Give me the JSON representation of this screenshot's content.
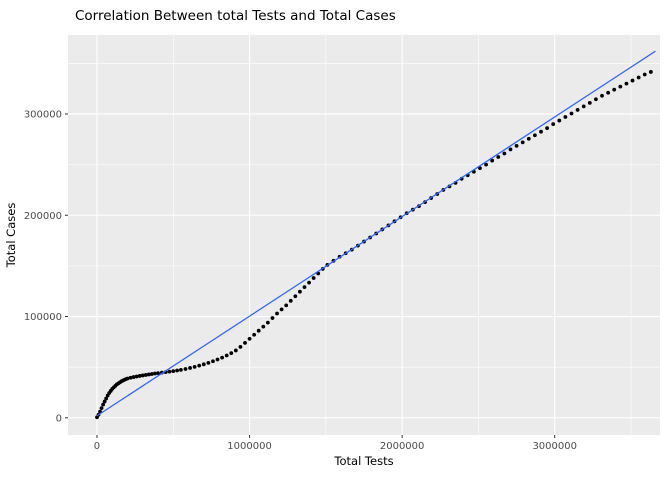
{
  "chart_data": {
    "type": "scatter",
    "title": "Correlation Between total Tests and Total Cases",
    "xlabel": "Total Tests",
    "ylabel": "Total Cases",
    "x_ticks": [
      0,
      1000000,
      2000000,
      3000000
    ],
    "x_tick_labels": [
      "0",
      "1000000",
      "2000000",
      "3000000"
    ],
    "y_ticks": [
      0,
      100000,
      200000,
      300000
    ],
    "y_tick_labels": [
      "0",
      "100000",
      "200000",
      "300000"
    ],
    "x_minor_ticks": [
      500000,
      1500000,
      2500000,
      3500000
    ],
    "y_minor_ticks": [
      50000,
      150000,
      250000,
      350000
    ],
    "xlim": [
      -190000,
      3690000
    ],
    "ylim": [
      -17000,
      378000
    ],
    "grid": true,
    "legend": false,
    "panel_bg": "#EBEBEB",
    "grid_color": "#FFFFFF",
    "point_color": "#000000",
    "line_color": "#3366FF",
    "regression_line": {
      "x1": 0,
      "y1": 2000,
      "x2": 3660000,
      "y2": 362000
    },
    "points": [
      [
        0,
        500
      ],
      [
        10000,
        3000
      ],
      [
        20000,
        6000
      ],
      [
        30000,
        9500
      ],
      [
        40000,
        13000
      ],
      [
        50000,
        16000
      ],
      [
        60000,
        19000
      ],
      [
        70000,
        22000
      ],
      [
        80000,
        24500
      ],
      [
        90000,
        26500
      ],
      [
        100000,
        28500
      ],
      [
        110000,
        30000
      ],
      [
        120000,
        31500
      ],
      [
        130000,
        33000
      ],
      [
        140000,
        34000
      ],
      [
        150000,
        35000
      ],
      [
        160000,
        36000
      ],
      [
        170000,
        36800
      ],
      [
        180000,
        37500
      ],
      [
        190000,
        38200
      ],
      [
        200000,
        38800
      ],
      [
        220000,
        39500
      ],
      [
        240000,
        40200
      ],
      [
        260000,
        40800
      ],
      [
        280000,
        41300
      ],
      [
        300000,
        41800
      ],
      [
        320000,
        42300
      ],
      [
        340000,
        42800
      ],
      [
        360000,
        43200
      ],
      [
        380000,
        43700
      ],
      [
        400000,
        44100
      ],
      [
        425000,
        44600
      ],
      [
        450000,
        45100
      ],
      [
        475000,
        45600
      ],
      [
        500000,
        46100
      ],
      [
        525000,
        46700
      ],
      [
        550000,
        47300
      ],
      [
        580000,
        48200
      ],
      [
        610000,
        49200
      ],
      [
        640000,
        50300
      ],
      [
        670000,
        51500
      ],
      [
        700000,
        52800
      ],
      [
        730000,
        54200
      ],
      [
        760000,
        55800
      ],
      [
        790000,
        57500
      ],
      [
        820000,
        59400
      ],
      [
        850000,
        61500
      ],
      [
        880000,
        63800
      ],
      [
        910000,
        66500
      ],
      [
        940000,
        70000
      ],
      [
        970000,
        74000
      ],
      [
        1000000,
        78000
      ],
      [
        1030000,
        82000
      ],
      [
        1060000,
        86000
      ],
      [
        1090000,
        90000
      ],
      [
        1120000,
        94000
      ],
      [
        1150000,
        98500
      ],
      [
        1180000,
        103000
      ],
      [
        1210000,
        107000
      ],
      [
        1240000,
        111000
      ],
      [
        1270000,
        115500
      ],
      [
        1300000,
        120000
      ],
      [
        1330000,
        124500
      ],
      [
        1360000,
        129000
      ],
      [
        1390000,
        133500
      ],
      [
        1420000,
        138000
      ],
      [
        1450000,
        142500
      ],
      [
        1480000,
        147000
      ],
      [
        1510000,
        151000
      ],
      [
        1550000,
        155000
      ],
      [
        1590000,
        159000
      ],
      [
        1630000,
        162500
      ],
      [
        1670000,
        166000
      ],
      [
        1710000,
        170000
      ],
      [
        1750000,
        174000
      ],
      [
        1790000,
        178000
      ],
      [
        1830000,
        182000
      ],
      [
        1870000,
        186000
      ],
      [
        1910000,
        190000
      ],
      [
        1950000,
        194000
      ],
      [
        1990000,
        198000
      ],
      [
        2030000,
        202000
      ],
      [
        2070000,
        205500
      ],
      [
        2110000,
        209000
      ],
      [
        2150000,
        213000
      ],
      [
        2190000,
        217000
      ],
      [
        2230000,
        221000
      ],
      [
        2270000,
        225000
      ],
      [
        2310000,
        228500
      ],
      [
        2350000,
        232000
      ],
      [
        2390000,
        236000
      ],
      [
        2430000,
        239500
      ],
      [
        2470000,
        243000
      ],
      [
        2510000,
        246500
      ],
      [
        2550000,
        250000
      ],
      [
        2590000,
        254000
      ],
      [
        2630000,
        257500
      ],
      [
        2670000,
        261000
      ],
      [
        2710000,
        265000
      ],
      [
        2750000,
        268500
      ],
      [
        2790000,
        272000
      ],
      [
        2830000,
        275500
      ],
      [
        2870000,
        279000
      ],
      [
        2910000,
        282500
      ],
      [
        2950000,
        286000
      ],
      [
        2990000,
        290000
      ],
      [
        3030000,
        293500
      ],
      [
        3070000,
        297000
      ],
      [
        3110000,
        300500
      ],
      [
        3150000,
        304000
      ],
      [
        3190000,
        307500
      ],
      [
        3230000,
        311000
      ],
      [
        3270000,
        314500
      ],
      [
        3310000,
        318000
      ],
      [
        3350000,
        321000
      ],
      [
        3390000,
        324000
      ],
      [
        3430000,
        327000
      ],
      [
        3470000,
        330000
      ],
      [
        3510000,
        333000
      ],
      [
        3550000,
        336000
      ],
      [
        3590000,
        339000
      ],
      [
        3630000,
        341500
      ]
    ]
  }
}
